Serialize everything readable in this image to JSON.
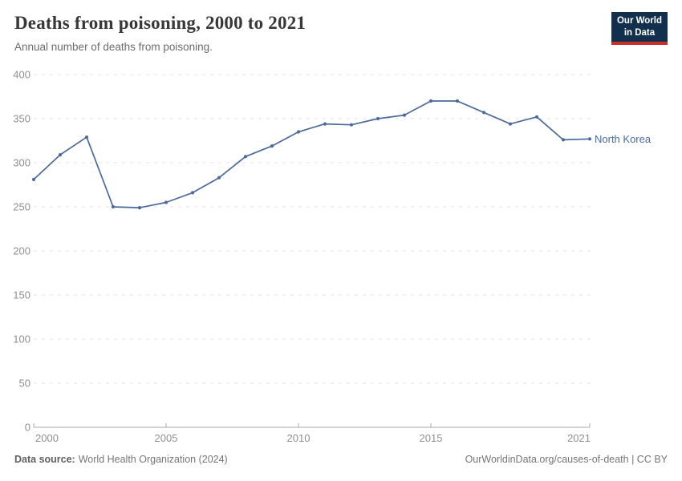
{
  "header": {
    "title": "Deaths from poisoning, 2000 to 2021",
    "subtitle": "Annual number of deaths from poisoning.",
    "logo": {
      "line1": "Our World",
      "line2": "in Data"
    }
  },
  "chart_data": {
    "type": "line",
    "title": "Deaths from poisoning, 2000 to 2021",
    "xlabel": "",
    "ylabel": "",
    "xlim": [
      2000,
      2021
    ],
    "ylim": [
      0,
      400
    ],
    "x_ticks": [
      2000,
      2005,
      2010,
      2015,
      2021
    ],
    "y_ticks": [
      0,
      50,
      100,
      150,
      200,
      250,
      300,
      350,
      400
    ],
    "grid": "horizontal-dashed",
    "legend_position": "end-of-line",
    "series": [
      {
        "name": "North Korea",
        "color": "#4c6a9c",
        "x": [
          2000,
          2001,
          2002,
          2003,
          2004,
          2005,
          2006,
          2007,
          2008,
          2009,
          2010,
          2011,
          2012,
          2013,
          2014,
          2015,
          2016,
          2017,
          2018,
          2019,
          2020,
          2021
        ],
        "values": [
          281,
          309,
          329,
          250,
          249,
          255,
          266,
          283,
          307,
          319,
          335,
          344,
          343,
          350,
          354,
          370,
          370,
          357,
          344,
          352,
          326,
          327
        ]
      }
    ]
  },
  "footer": {
    "source_label": "Data source:",
    "source_text": "World Health Organization (2024)",
    "link_text": "OurWorldinData.org/causes-of-death | CC BY"
  },
  "colors": {
    "line": "#4c6a9c",
    "grid": "#e0e0e0",
    "axis": "#a8a8a8",
    "tick_label": "#8f8f8f",
    "logo_bg": "#12304e",
    "logo_red": "#c9302c"
  }
}
